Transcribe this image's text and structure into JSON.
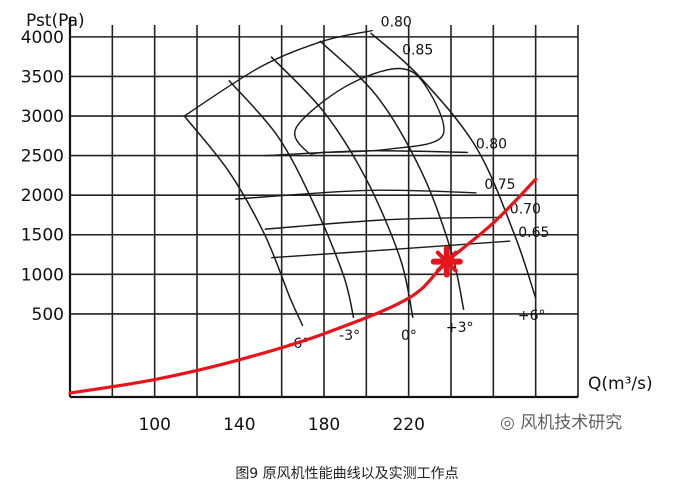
{
  "caption": "图9 原风机性能曲线以及实测工作点",
  "watermark": "风机技术研究",
  "chart_data": {
    "type": "line",
    "title": "",
    "xlabel": "Q(m³/s)",
    "ylabel": "Pst(Pa)",
    "xlim": [
      60,
      300
    ],
    "ylim": [
      -550,
      4150
    ],
    "xticks": [
      100,
      140,
      180,
      220
    ],
    "xtick_labels": [
      "100",
      "140",
      "180",
      "220"
    ],
    "yticks": [
      500,
      1000,
      1500,
      2000,
      2500,
      3000,
      3500,
      4000
    ],
    "ytick_labels": [
      "500",
      "1000",
      "1500",
      "2000",
      "2500",
      "3000",
      "3500",
      "4000"
    ],
    "grid": true,
    "blade_angle_curves": [
      {
        "label": "-6°",
        "points": [
          [
            114,
            3000
          ],
          [
            135,
            2300
          ],
          [
            152,
            1500
          ],
          [
            164,
            700
          ],
          [
            170,
            350
          ]
        ]
      },
      {
        "label": "-3°",
        "points": [
          [
            135,
            3450
          ],
          [
            158,
            2750
          ],
          [
            175,
            1900
          ],
          [
            189,
            1000
          ],
          [
            194,
            450
          ]
        ]
      },
      {
        "label": "0°",
        "points": [
          [
            155,
            3750
          ],
          [
            180,
            3050
          ],
          [
            200,
            2200
          ],
          [
            216,
            1200
          ],
          [
            222,
            450
          ]
        ]
      },
      {
        "label": "+3°",
        "points": [
          [
            178,
            3950
          ],
          [
            205,
            3250
          ],
          [
            226,
            2300
          ],
          [
            240,
            1300
          ],
          [
            246,
            550
          ]
        ]
      },
      {
        "label": "+6°",
        "points": [
          [
            202,
            4050
          ],
          [
            225,
            3500
          ],
          [
            252,
            2600
          ],
          [
            270,
            1500
          ],
          [
            280,
            700
          ]
        ]
      }
    ],
    "efficiency_curves": [
      {
        "label": "0.80",
        "points": [
          [
            114,
            3000
          ],
          [
            150,
            3620
          ],
          [
            180,
            3950
          ],
          [
            203,
            4080
          ]
        ]
      },
      {
        "label": "0.85",
        "points": [
          [
            172,
            2550
          ],
          [
            167,
            2860
          ],
          [
            190,
            3370
          ],
          [
            215,
            3600
          ],
          [
            228,
            3380
          ],
          [
            236,
            2750
          ],
          [
            210,
            2580
          ],
          [
            180,
            2540
          ]
        ]
      },
      {
        "label": "0.80",
        "points": [
          [
            152,
            2500
          ],
          [
            200,
            2560
          ],
          [
            248,
            2540
          ]
        ]
      },
      {
        "label": "0.75",
        "points": [
          [
            138,
            1950
          ],
          [
            200,
            2060
          ],
          [
            252,
            2030
          ]
        ]
      },
      {
        "label": "0.70",
        "points": [
          [
            152,
            1570
          ],
          [
            210,
            1690
          ],
          [
            264,
            1720
          ]
        ]
      },
      {
        "label": "0.65",
        "points": [
          [
            155,
            1210
          ],
          [
            210,
            1310
          ],
          [
            268,
            1420
          ]
        ]
      }
    ],
    "series": [
      {
        "name": "",
        "type": "system_curve",
        "points": [
          [
            60,
            -500
          ],
          [
            100,
            -330
          ],
          [
            140,
            -80
          ],
          [
            180,
            250
          ],
          [
            220,
            700
          ],
          [
            238,
            1160
          ],
          [
            260,
            1650
          ],
          [
            280,
            2200
          ]
        ]
      }
    ],
    "annotations": [
      {
        "text": "measured operating point",
        "marker": "red-cross",
        "x": 238,
        "y": 1160
      }
    ],
    "colors": {
      "system_curve": "#e8141c",
      "curves": "#1a1a1a",
      "grid": "#222222"
    }
  }
}
